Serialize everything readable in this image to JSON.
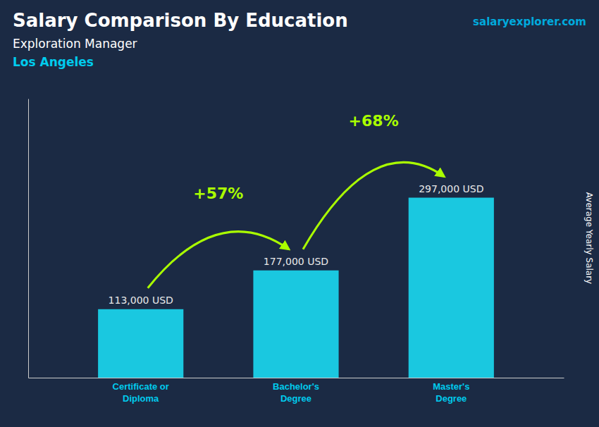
{
  "chart_data": {
    "type": "bar",
    "title": "Salary Comparison By Education",
    "subtitle": [
      "Exploration Manager",
      "Los Angeles"
    ],
    "source": "salaryexplorer.com",
    "ylabel": "Average Yearly Salary",
    "categories": [
      "Certificate or\nDiploma",
      "Bachelor's\nDegree",
      "Master's\nDegree"
    ],
    "values": [
      113000,
      177000,
      297000
    ],
    "value_labels": [
      "113,000 USD",
      "177,000 USD",
      "297,000 USD"
    ],
    "data_labels": true,
    "color": "#1ac8e0",
    "ylim": [
      0,
      460350
    ],
    "tick_labels": "x",
    "grid": false,
    "annotations": [
      {
        "text": "+57%",
        "color": "#aaff00"
      },
      {
        "text": "+68%",
        "color": "#aaff00"
      }
    ]
  }
}
